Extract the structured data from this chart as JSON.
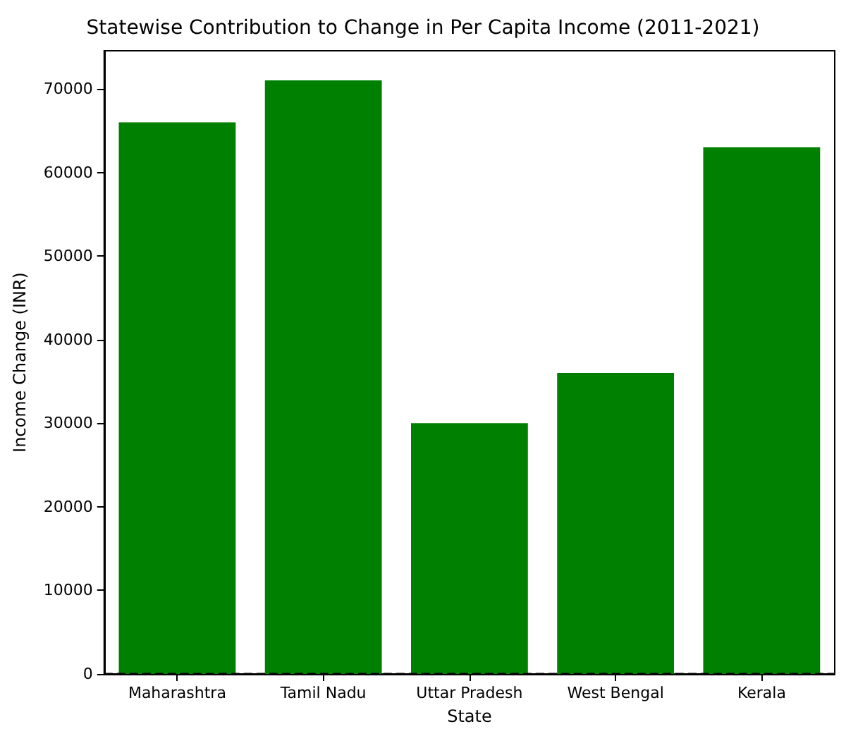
{
  "chart_data": {
    "type": "bar",
    "title": "Statewise Contribution to Change in Per Capita Income (2011-2021)",
    "xlabel": "State",
    "ylabel": "Income Change (INR)",
    "categories": [
      "Maharashtra",
      "Tamil Nadu",
      "Uttar Pradesh",
      "West Bengal",
      "Kerala"
    ],
    "values": [
      66000,
      71000,
      30000,
      36000,
      63000
    ],
    "color": "#008000",
    "ylim": [
      0,
      74550
    ],
    "yticks": [
      0,
      10000,
      20000,
      30000,
      40000,
      50000,
      60000,
      70000
    ],
    "grid": false,
    "ref_lines": [
      {
        "axis": "y",
        "value": 0,
        "color": "#000000",
        "line_style": "dashed"
      }
    ]
  }
}
